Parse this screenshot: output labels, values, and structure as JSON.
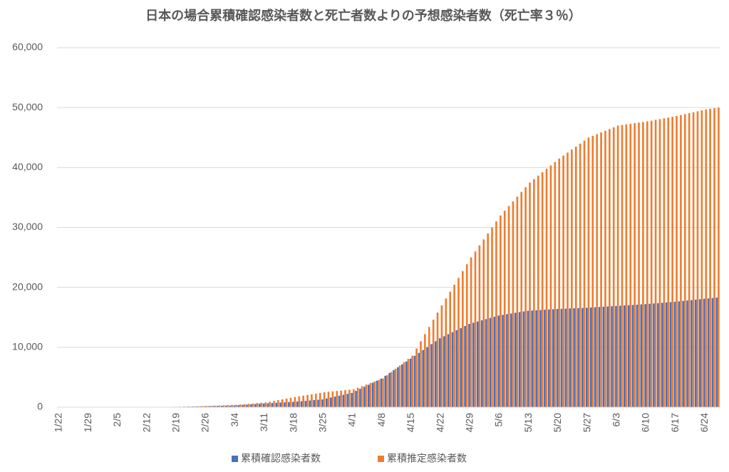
{
  "chart_data": {
    "type": "bar",
    "title": "日本の場合累積確認感染者数と死亡者数よりの予想感染者数（死亡率３％）",
    "categories": [
      "1/22",
      null,
      null,
      null,
      null,
      null,
      null,
      "1/29",
      null,
      null,
      null,
      null,
      null,
      null,
      "2/5",
      null,
      null,
      null,
      null,
      null,
      null,
      "2/12",
      null,
      null,
      null,
      null,
      null,
      null,
      "2/19",
      null,
      null,
      null,
      null,
      null,
      null,
      "2/26",
      null,
      null,
      null,
      null,
      null,
      null,
      "3/4",
      null,
      null,
      null,
      null,
      null,
      null,
      "3/11",
      null,
      null,
      null,
      null,
      null,
      null,
      "3/18",
      null,
      null,
      null,
      null,
      null,
      null,
      "3/25",
      null,
      null,
      null,
      null,
      null,
      null,
      "4/1",
      null,
      null,
      null,
      null,
      null,
      null,
      "4/8",
      null,
      null,
      null,
      null,
      null,
      null,
      "4/15",
      null,
      null,
      null,
      null,
      null,
      null,
      "4/22",
      null,
      null,
      null,
      null,
      null,
      null,
      "4/29",
      null,
      null,
      null,
      null,
      null,
      null,
      "5/6",
      null,
      null,
      null,
      null,
      null,
      null,
      "5/13",
      null,
      null,
      null,
      null,
      null,
      null,
      "5/20",
      null,
      null,
      null,
      null,
      null,
      null,
      "5/27",
      null,
      null,
      null,
      null,
      null,
      null,
      "6/3",
      null,
      null,
      null,
      null,
      null,
      null,
      "6/10",
      null,
      null,
      null,
      null,
      null,
      null,
      "6/17",
      null,
      null,
      null,
      null,
      null,
      null,
      "6/24",
      null,
      null,
      null
    ],
    "series": [
      {
        "name": "累積確認感染者数",
        "color": "#4472c4",
        "values": [
          1,
          1,
          2,
          3,
          4,
          4,
          5,
          7,
          9,
          11,
          13,
          15,
          17,
          18,
          20,
          21,
          22,
          23,
          24,
          25,
          27,
          28,
          32,
          40,
          48,
          55,
          62,
          67,
          73,
          86,
          99,
          112,
          125,
          138,
          151,
          164,
          182,
          201,
          219,
          238,
          256,
          275,
          293,
          340,
          386,
          433,
          480,
          527,
          573,
          620,
          658,
          697,
          735,
          774,
          812,
          851,
          889,
          949,
          1009,
          1068,
          1128,
          1188,
          1247,
          1307,
          1461,
          1615,
          1769,
          1923,
          2076,
          2230,
          2384,
          2725,
          3065,
          3406,
          3746,
          4087,
          4427,
          4768,
          5244,
          5720,
          6196,
          6672,
          7148,
          7624,
          8100,
          8586,
          9071,
          9557,
          10043,
          10529,
          11014,
          11500,
          11843,
          12186,
          12529,
          12871,
          13214,
          13557,
          13900,
          14100,
          14300,
          14500,
          14700,
          14900,
          15100,
          15300,
          15414,
          15529,
          15643,
          15757,
          15871,
          15986,
          16100,
          16143,
          16186,
          16229,
          16271,
          16314,
          16357,
          16400,
          16429,
          16457,
          16486,
          16514,
          16543,
          16571,
          16600,
          16643,
          16686,
          16729,
          16771,
          16814,
          16857,
          16900,
          16943,
          16986,
          17029,
          17071,
          17114,
          17157,
          17200,
          17257,
          17314,
          17371,
          17429,
          17486,
          17543,
          17600,
          17671,
          17743,
          17814,
          17886,
          17957,
          18029,
          18100,
          18167,
          18233,
          18300
        ]
      },
      {
        "name": "累積推定感染者数",
        "color": "#ed7d31",
        "values": [
          0,
          0,
          0,
          0,
          0,
          0,
          0,
          0,
          0,
          0,
          0,
          0,
          0,
          0,
          0,
          0,
          0,
          0,
          0,
          0,
          0,
          0,
          33,
          33,
          33,
          33,
          33,
          33,
          33,
          57,
          81,
          105,
          128,
          152,
          176,
          200,
          229,
          257,
          286,
          314,
          343,
          371,
          400,
          457,
          514,
          571,
          629,
          686,
          743,
          800,
          929,
          1057,
          1186,
          1314,
          1443,
          1571,
          1700,
          1814,
          1929,
          2043,
          2157,
          2271,
          2386,
          2500,
          2571,
          2643,
          2714,
          2786,
          2857,
          2929,
          3000,
          3257,
          3514,
          3771,
          4029,
          4286,
          4543,
          4800,
          5343,
          5886,
          6429,
          6971,
          7514,
          8057,
          8600,
          9800,
          11000,
          12200,
          13400,
          14600,
          15800,
          17000,
          18143,
          19286,
          20429,
          21571,
          22714,
          23857,
          25000,
          26000,
          27000,
          28000,
          29000,
          30000,
          31000,
          32000,
          32786,
          33571,
          34357,
          35143,
          35929,
          36714,
          37500,
          38071,
          38643,
          39214,
          39786,
          40357,
          40929,
          41500,
          42000,
          42500,
          43000,
          43500,
          44000,
          44500,
          45000,
          45286,
          45571,
          45857,
          46143,
          46429,
          46714,
          47000,
          47100,
          47200,
          47300,
          47400,
          47500,
          47600,
          47700,
          47829,
          47957,
          48086,
          48214,
          48343,
          48471,
          48600,
          48757,
          48914,
          49071,
          49229,
          49386,
          49543,
          49700,
          49800,
          49900,
          50000
        ]
      }
    ],
    "ylim": [
      0,
      60000
    ],
    "yticks": [
      0,
      {
        "value": 10000,
        "label": "10,000"
      },
      {
        "value": 20000,
        "label": "20,000"
      },
      {
        "value": 30000,
        "label": "30,000"
      },
      {
        "value": 40000,
        "label": "40,000"
      },
      {
        "value": 50000,
        "label": "50,000"
      },
      {
        "value": 60000,
        "label": "60,000"
      }
    ],
    "grid": true,
    "legend": "bottom"
  }
}
